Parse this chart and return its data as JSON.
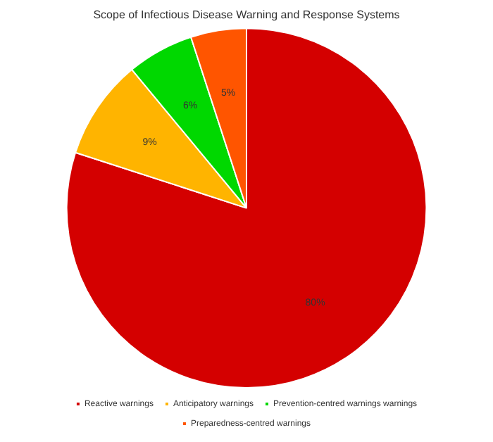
{
  "chart_data": {
    "type": "pie",
    "title": "Scope of Infectious Disease Warning and Response Systems",
    "categories": [
      "Reactive warnings",
      "Anticipatory warnings",
      "Prevention-centred warnings warnings",
      "Preparedness-centred warnings"
    ],
    "values": [
      80,
      9,
      6,
      5
    ],
    "colors": [
      "#d40000",
      "#ffb400",
      "#00d800",
      "#ff5500"
    ],
    "value_labels": [
      "80%",
      "9%",
      "6%",
      "5%"
    ],
    "legend": "bottom"
  }
}
